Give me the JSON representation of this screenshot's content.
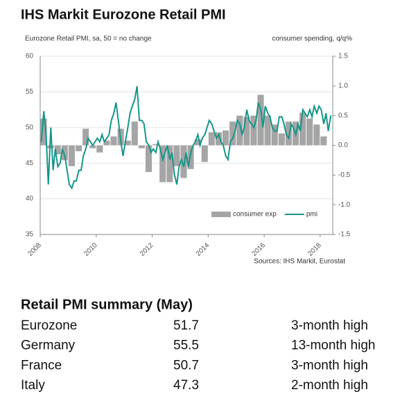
{
  "chart_data": {
    "type": "combo",
    "title": "IHS Markit Eurozone Retail PMI",
    "ylabel": "Eurozone Retail PMI, sa, 50 = no change",
    "y2label": "consumer spending, q/q%",
    "source": "Sources: IHS Markit, Eurostat",
    "xlim": [
      2008,
      2018.45
    ],
    "xticks": [
      2008,
      2010,
      2012,
      2014,
      2016,
      2018
    ],
    "ylim": [
      35,
      60
    ],
    "yticks": [
      35,
      40,
      45,
      50,
      55,
      60
    ],
    "y2lim": [
      -1.5,
      1.5
    ],
    "y2ticks": [
      -1.5,
      {
        "value": -1,
        "label": "-1.0"
      },
      -0.5,
      {
        "value": 0,
        "label": "0.0"
      },
      0.5,
      {
        "value": 1,
        "label": "1.0"
      },
      1.5
    ],
    "grid": true,
    "legend": "lower right",
    "series": [
      {
        "name": "consumer exp",
        "type": "bar",
        "axis": "y2",
        "color": "#a5a5a5",
        "x": [
          2008.125,
          2008.375,
          2008.625,
          2008.875,
          2009.125,
          2009.375,
          2009.625,
          2009.875,
          2010.125,
          2010.375,
          2010.625,
          2010.875,
          2011.125,
          2011.375,
          2011.625,
          2011.875,
          2012.125,
          2012.375,
          2012.625,
          2012.875,
          2013.125,
          2013.375,
          2013.625,
          2013.875,
          2014.125,
          2014.375,
          2014.625,
          2014.875,
          2015.125,
          2015.375,
          2015.625,
          2015.875,
          2016.125,
          2016.375,
          2016.625,
          2016.875,
          2017.125,
          2017.375,
          2017.625,
          2017.875,
          2018.125
        ],
        "values": [
          0.45,
          -0.05,
          -0.15,
          -0.25,
          -0.35,
          -0.1,
          0.28,
          -0.05,
          -0.12,
          0.08,
          0.15,
          0.28,
          0.08,
          0.4,
          -0.05,
          -0.45,
          0.02,
          -0.62,
          -0.62,
          -0.35,
          -0.55,
          -0.4,
          0.1,
          -0.28,
          0.22,
          0.22,
          0.25,
          0.4,
          0.5,
          0.48,
          0.5,
          0.85,
          0.5,
          0.35,
          0.2,
          0.4,
          0.4,
          0.55,
          0.45,
          0.35,
          0.15
        ]
      },
      {
        "name": "pmi",
        "type": "line",
        "axis": "y",
        "color": "#16958a",
        "x": [
          2008.04,
          2008.13,
          2008.21,
          2008.29,
          2008.38,
          2008.46,
          2008.54,
          2008.63,
          2008.71,
          2008.79,
          2008.88,
          2008.96,
          2009.04,
          2009.13,
          2009.21,
          2009.29,
          2009.38,
          2009.46,
          2009.54,
          2009.63,
          2009.71,
          2009.79,
          2009.88,
          2009.96,
          2010.04,
          2010.13,
          2010.21,
          2010.29,
          2010.38,
          2010.46,
          2010.54,
          2010.63,
          2010.71,
          2010.79,
          2010.88,
          2010.96,
          2011.04,
          2011.13,
          2011.21,
          2011.29,
          2011.38,
          2011.46,
          2011.54,
          2011.63,
          2011.71,
          2011.79,
          2011.88,
          2011.96,
          2012.04,
          2012.13,
          2012.21,
          2012.29,
          2012.38,
          2012.46,
          2012.54,
          2012.63,
          2012.71,
          2012.79,
          2012.88,
          2012.96,
          2013.04,
          2013.13,
          2013.21,
          2013.29,
          2013.38,
          2013.46,
          2013.54,
          2013.63,
          2013.71,
          2013.79,
          2013.88,
          2013.96,
          2014.04,
          2014.13,
          2014.21,
          2014.29,
          2014.38,
          2014.46,
          2014.54,
          2014.63,
          2014.71,
          2014.79,
          2014.88,
          2014.96,
          2015.04,
          2015.13,
          2015.21,
          2015.29,
          2015.38,
          2015.46,
          2015.54,
          2015.63,
          2015.71,
          2015.79,
          2015.88,
          2015.96,
          2016.04,
          2016.13,
          2016.21,
          2016.29,
          2016.38,
          2016.46,
          2016.54,
          2016.63,
          2016.71,
          2016.79,
          2016.88,
          2016.96,
          2017.04,
          2017.13,
          2017.21,
          2017.29,
          2017.38,
          2017.46,
          2017.54,
          2017.63,
          2017.71,
          2017.79,
          2017.88,
          2017.96,
          2018.04,
          2018.13,
          2018.21,
          2018.29,
          2018.38
        ],
        "values": [
          48,
          52.3,
          49,
          42,
          50,
          44,
          47,
          44.5,
          45,
          47,
          46,
          44,
          42,
          41.5,
          42.5,
          42.5,
          44,
          44,
          46,
          47,
          48.5,
          48,
          47.5,
          48,
          48.5,
          48,
          49,
          48,
          48.5,
          49,
          51,
          52,
          53.5,
          51,
          48,
          46,
          48,
          50,
          52,
          53,
          54,
          55.8,
          51,
          51,
          50.5,
          48,
          47.5,
          46.5,
          47,
          46.5,
          48,
          47,
          45.5,
          46.5,
          47.5,
          45.5,
          46.5,
          43.5,
          42,
          44.5,
          45.5,
          44.5,
          46.5,
          44.5,
          46.5,
          47.5,
          48,
          49,
          47.5,
          48.5,
          49,
          50,
          51,
          50.5,
          49.5,
          48.5,
          49,
          48,
          47.5,
          46,
          45.5,
          48,
          48.5,
          49.5,
          51,
          50.5,
          49,
          50,
          52.5,
          51,
          50.5,
          50,
          51,
          53.5,
          52.5,
          50,
          53,
          52,
          51.5,
          50,
          49.5,
          49.5,
          51.5,
          51.5,
          50.5,
          49,
          48.5,
          50.5,
          50,
          49,
          50.5,
          49.5,
          52.5,
          52,
          51.5,
          52.5,
          51.5,
          53,
          52,
          53,
          52.5,
          50.5,
          52,
          49.5,
          51.7
        ]
      }
    ]
  },
  "table": {
    "title": "Retail PMI summary (May)",
    "rows": [
      [
        "Eurozone",
        51.7,
        "3-month high"
      ],
      [
        "Germany",
        55.5,
        "13-month high"
      ],
      [
        "France",
        50.7,
        "3-month high"
      ],
      [
        "Italy",
        47.3,
        "2-month high"
      ]
    ]
  }
}
